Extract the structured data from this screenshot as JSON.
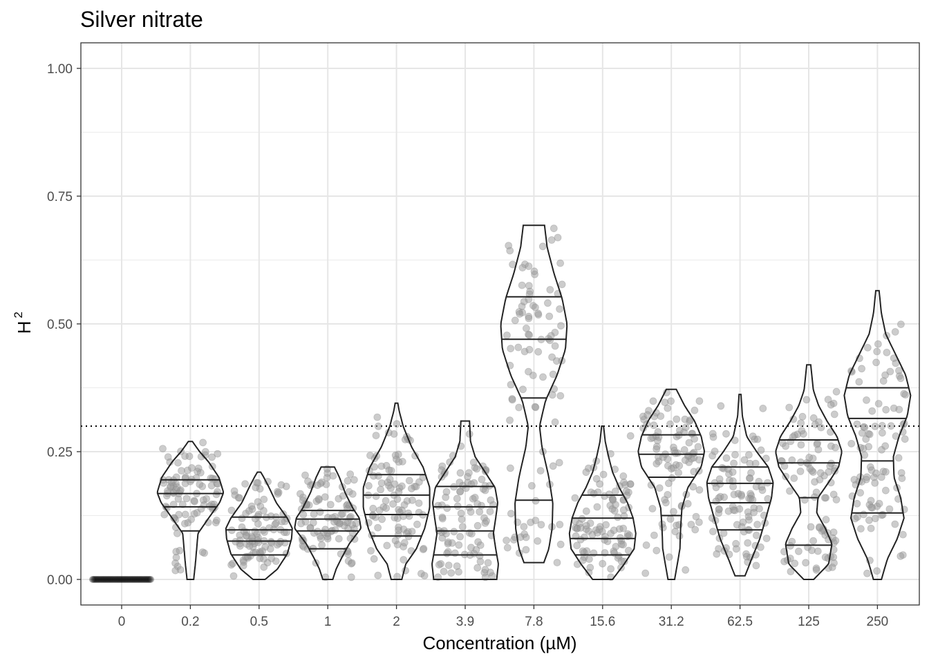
{
  "chart_data": {
    "type": "violin",
    "title": "Silver nitrate",
    "xlabel": "Concentration (µM)",
    "ylabel": "H",
    "ylabel_superscript": "2",
    "ylim": [
      -0.05,
      1.05
    ],
    "yticks": [
      "0.00",
      "0.25",
      "0.50",
      "0.75",
      "1.00"
    ],
    "ytick_values": [
      0,
      0.25,
      0.5,
      0.75,
      1.0
    ],
    "reference_line": {
      "y": 0.3,
      "style": "dotted"
    },
    "grid": true,
    "point_color": "#999999",
    "categories": [
      "0",
      "0.2",
      "0.5",
      "1",
      "2",
      "3.9",
      "7.8",
      "15.6",
      "31.2",
      "62.5",
      "125",
      "250"
    ],
    "groups": [
      {
        "label": "0",
        "min": 0,
        "max": 0,
        "quantiles": [],
        "profile": []
      },
      {
        "label": "0.2",
        "min": 0.0,
        "max": 0.27,
        "quantiles": [
          0.095,
          0.142,
          0.168,
          0.195
        ],
        "profile": [
          [
            0.0,
            0.1
          ],
          [
            0.03,
            0.15
          ],
          [
            0.06,
            0.19
          ],
          [
            0.09,
            0.23
          ],
          [
            0.12,
            0.55
          ],
          [
            0.15,
            0.88
          ],
          [
            0.17,
            1.0
          ],
          [
            0.2,
            0.86
          ],
          [
            0.23,
            0.55
          ],
          [
            0.25,
            0.28
          ],
          [
            0.27,
            0.06
          ]
        ]
      },
      {
        "label": "0.5",
        "min": 0.0,
        "max": 0.21,
        "quantiles": [
          0.048,
          0.075,
          0.097,
          0.122
        ],
        "profile": [
          [
            0.0,
            0.18
          ],
          [
            0.02,
            0.55
          ],
          [
            0.05,
            0.85
          ],
          [
            0.08,
            0.98
          ],
          [
            0.1,
            1.0
          ],
          [
            0.12,
            0.85
          ],
          [
            0.15,
            0.52
          ],
          [
            0.18,
            0.3
          ],
          [
            0.2,
            0.14
          ],
          [
            0.21,
            0.05
          ]
        ]
      },
      {
        "label": "1",
        "min": 0.0,
        "max": 0.22,
        "quantiles": [
          0.06,
          0.095,
          0.118,
          0.135
        ],
        "profile": [
          [
            0.0,
            0.15
          ],
          [
            0.02,
            0.25
          ],
          [
            0.04,
            0.4
          ],
          [
            0.07,
            0.65
          ],
          [
            0.1,
            1.0
          ],
          [
            0.12,
            0.95
          ],
          [
            0.14,
            0.75
          ],
          [
            0.17,
            0.52
          ],
          [
            0.2,
            0.35
          ],
          [
            0.22,
            0.2
          ]
        ]
      },
      {
        "label": "2",
        "min": 0.0,
        "max": 0.345,
        "quantiles": [
          0.085,
          0.127,
          0.165,
          0.205
        ],
        "profile": [
          [
            0.0,
            0.16
          ],
          [
            0.03,
            0.28
          ],
          [
            0.06,
            0.6
          ],
          [
            0.1,
            0.85
          ],
          [
            0.14,
            1.0
          ],
          [
            0.18,
            1.0
          ],
          [
            0.22,
            0.8
          ],
          [
            0.26,
            0.45
          ],
          [
            0.3,
            0.2
          ],
          [
            0.33,
            0.08
          ],
          [
            0.345,
            0.04
          ]
        ]
      },
      {
        "label": "3.9",
        "min": 0.0,
        "max": 0.31,
        "quantiles": [
          0.048,
          0.095,
          0.142,
          0.182
        ],
        "profile": [
          [
            0.0,
            0.95
          ],
          [
            0.03,
            1.0
          ],
          [
            0.06,
            0.92
          ],
          [
            0.09,
            0.85
          ],
          [
            0.12,
            0.92
          ],
          [
            0.15,
            0.98
          ],
          [
            0.18,
            0.9
          ],
          [
            0.21,
            0.6
          ],
          [
            0.24,
            0.3
          ],
          [
            0.27,
            0.16
          ],
          [
            0.31,
            0.13
          ]
        ]
      },
      {
        "label": "7.8",
        "min": 0.033,
        "max": 0.693,
        "quantiles": [
          0.155,
          0.355,
          0.47,
          0.553
        ],
        "profile": [
          [
            0.033,
            0.3
          ],
          [
            0.06,
            0.45
          ],
          [
            0.1,
            0.55
          ],
          [
            0.15,
            0.57
          ],
          [
            0.2,
            0.45
          ],
          [
            0.26,
            0.24
          ],
          [
            0.3,
            0.17
          ],
          [
            0.35,
            0.35
          ],
          [
            0.4,
            0.7
          ],
          [
            0.45,
            0.95
          ],
          [
            0.5,
            1.0
          ],
          [
            0.55,
            0.85
          ],
          [
            0.6,
            0.6
          ],
          [
            0.65,
            0.4
          ],
          [
            0.693,
            0.32
          ]
        ]
      },
      {
        "label": "15.6",
        "min": 0.0,
        "max": 0.3,
        "quantiles": [
          0.048,
          0.08,
          0.12,
          0.165
        ],
        "profile": [
          [
            0.0,
            0.3
          ],
          [
            0.03,
            0.65
          ],
          [
            0.06,
            0.95
          ],
          [
            0.09,
            1.0
          ],
          [
            0.12,
            0.92
          ],
          [
            0.15,
            0.75
          ],
          [
            0.18,
            0.5
          ],
          [
            0.21,
            0.3
          ],
          [
            0.24,
            0.18
          ],
          [
            0.27,
            0.08
          ],
          [
            0.3,
            0.03
          ]
        ]
      },
      {
        "label": "31.2",
        "min": 0.0,
        "max": 0.372,
        "quantiles": [
          0.125,
          0.2,
          0.245,
          0.283
        ],
        "profile": [
          [
            0.0,
            0.1
          ],
          [
            0.03,
            0.18
          ],
          [
            0.06,
            0.26
          ],
          [
            0.1,
            0.28
          ],
          [
            0.14,
            0.32
          ],
          [
            0.18,
            0.5
          ],
          [
            0.22,
            0.9
          ],
          [
            0.25,
            1.0
          ],
          [
            0.28,
            0.9
          ],
          [
            0.31,
            0.7
          ],
          [
            0.34,
            0.4
          ],
          [
            0.372,
            0.15
          ]
        ]
      },
      {
        "label": "62.5",
        "min": 0.007,
        "max": 0.362,
        "quantiles": [
          0.097,
          0.15,
          0.188,
          0.22
        ],
        "profile": [
          [
            0.007,
            0.15
          ],
          [
            0.04,
            0.35
          ],
          [
            0.08,
            0.6
          ],
          [
            0.12,
            0.78
          ],
          [
            0.16,
            0.95
          ],
          [
            0.19,
            1.0
          ],
          [
            0.22,
            0.85
          ],
          [
            0.25,
            0.5
          ],
          [
            0.28,
            0.2
          ],
          [
            0.32,
            0.07
          ],
          [
            0.362,
            0.03
          ]
        ]
      },
      {
        "label": "125",
        "min": 0.0,
        "max": 0.42,
        "quantiles": [
          0.067,
          0.16,
          0.228,
          0.273
        ],
        "profile": [
          [
            0.0,
            0.15
          ],
          [
            0.03,
            0.6
          ],
          [
            0.07,
            0.7
          ],
          [
            0.1,
            0.5
          ],
          [
            0.13,
            0.24
          ],
          [
            0.16,
            0.28
          ],
          [
            0.19,
            0.6
          ],
          [
            0.22,
            0.9
          ],
          [
            0.25,
            1.0
          ],
          [
            0.28,
            0.85
          ],
          [
            0.31,
            0.55
          ],
          [
            0.34,
            0.3
          ],
          [
            0.37,
            0.14
          ],
          [
            0.42,
            0.06
          ]
        ]
      },
      {
        "label": "250",
        "min": 0.0,
        "max": 0.565,
        "quantiles": [
          0.13,
          0.232,
          0.315,
          0.375
        ],
        "profile": [
          [
            0.0,
            0.12
          ],
          [
            0.04,
            0.3
          ],
          [
            0.08,
            0.6
          ],
          [
            0.12,
            0.8
          ],
          [
            0.16,
            0.7
          ],
          [
            0.2,
            0.5
          ],
          [
            0.24,
            0.48
          ],
          [
            0.28,
            0.65
          ],
          [
            0.32,
            0.9
          ],
          [
            0.36,
            1.0
          ],
          [
            0.4,
            0.85
          ],
          [
            0.44,
            0.55
          ],
          [
            0.48,
            0.25
          ],
          [
            0.52,
            0.12
          ],
          [
            0.565,
            0.05
          ]
        ]
      }
    ]
  }
}
